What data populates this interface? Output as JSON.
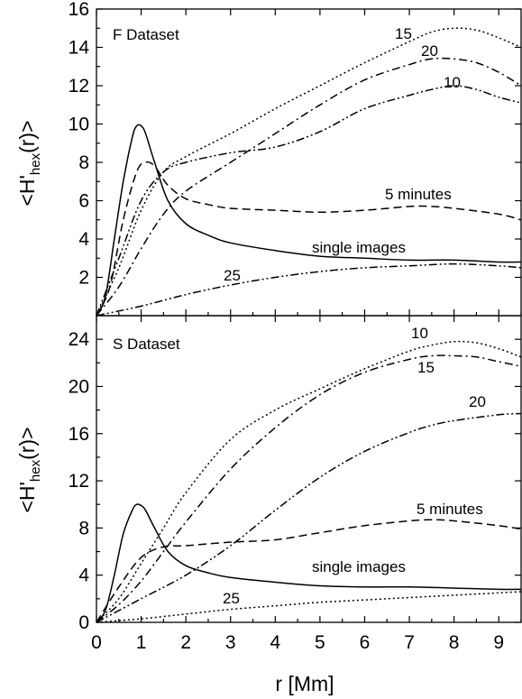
{
  "chart_data": [
    {
      "type": "line",
      "title": "F Dataset",
      "ylabel": "<H'hex(r)>",
      "xlim": [
        0,
        9.5
      ],
      "ylim": [
        0,
        16
      ],
      "yticks": [
        2,
        4,
        6,
        8,
        10,
        12,
        14,
        16
      ],
      "series": [
        {
          "name": "single images",
          "dash": "solid",
          "x": [
            0,
            0.2,
            0.4,
            0.6,
            0.8,
            0.9,
            1.0,
            1.1,
            1.3,
            1.6,
            2.0,
            2.5,
            3,
            4,
            5,
            6,
            7,
            8,
            9,
            9.5
          ],
          "y": [
            0,
            1,
            4,
            7,
            9.3,
            9.9,
            9.9,
            9.5,
            8,
            6,
            4.8,
            4.2,
            3.8,
            3.4,
            3.1,
            3.0,
            2.9,
            2.9,
            2.8,
            2.8
          ]
        },
        {
          "name": "5 minutes",
          "dash": "dashed",
          "x": [
            0,
            0.3,
            0.6,
            0.9,
            1.1,
            1.3,
            1.6,
            2.0,
            2.5,
            3,
            4,
            5,
            6,
            7,
            7.5,
            8,
            9,
            9.5
          ],
          "y": [
            0,
            1.5,
            5,
            7.5,
            8,
            7.8,
            6.8,
            6.1,
            5.8,
            5.6,
            5.5,
            5.4,
            5.5,
            5.7,
            5.7,
            5.6,
            5.3,
            5.0
          ]
        },
        {
          "name": "10",
          "dash": "dash-dot-dot",
          "x": [
            0,
            0.5,
            1.0,
            1.5,
            2.0,
            3,
            4,
            5,
            6,
            7,
            7.5,
            8,
            8.5,
            9,
            9.5
          ],
          "y": [
            0,
            3,
            6,
            7.5,
            8,
            8.5,
            8.8,
            9.6,
            10.8,
            11.5,
            11.8,
            12.0,
            11.8,
            11.4,
            11.1
          ]
        },
        {
          "name": "15",
          "dash": "dotted",
          "x": [
            0,
            0.5,
            1.0,
            1.5,
            2.0,
            3,
            4,
            5,
            6,
            7,
            7.5,
            8,
            8.5,
            9,
            9.5
          ],
          "y": [
            0,
            2.5,
            5.5,
            7.5,
            8.3,
            9.5,
            10.8,
            12,
            13.2,
            14.3,
            14.8,
            15.0,
            14.9,
            14.5,
            14.0
          ]
        },
        {
          "name": "20",
          "dash": "dash-dot",
          "x": [
            0,
            0.5,
            1.0,
            1.5,
            2.0,
            3,
            4,
            5,
            6,
            7,
            7.5,
            8,
            8.5,
            9,
            9.5
          ],
          "y": [
            0,
            1.5,
            3.5,
            5.3,
            6.5,
            8.0,
            9.5,
            11,
            12.3,
            13.1,
            13.4,
            13.4,
            13.2,
            12.7,
            12.0
          ]
        },
        {
          "name": "25",
          "dash": "dash-dot-dot",
          "x": [
            0,
            1,
            2,
            3,
            4,
            5,
            6,
            7,
            8,
            9,
            9.5
          ],
          "y": [
            0,
            0.5,
            1.1,
            1.6,
            2.0,
            2.3,
            2.5,
            2.6,
            2.7,
            2.6,
            2.5
          ]
        }
      ]
    },
    {
      "type": "line",
      "title": "S Dataset",
      "xlabel": "r [Mm]",
      "ylabel": "<H'hex(r)>",
      "xlim": [
        0,
        9.5
      ],
      "ylim": [
        0,
        26
      ],
      "yticks": [
        0,
        4,
        8,
        12,
        16,
        20,
        24
      ],
      "xticks": [
        0,
        1,
        2,
        3,
        4,
        5,
        6,
        7,
        8,
        9
      ],
      "series": [
        {
          "name": "single images",
          "dash": "solid",
          "x": [
            0,
            0.2,
            0.4,
            0.6,
            0.8,
            0.9,
            1.0,
            1.1,
            1.3,
            1.6,
            2.0,
            2.5,
            3,
            4,
            5,
            6,
            7,
            8,
            9,
            9.5
          ],
          "y": [
            0,
            1,
            4,
            7.5,
            9.5,
            10,
            9.9,
            9.5,
            8,
            6,
            4.8,
            4.2,
            3.8,
            3.4,
            3.1,
            3.0,
            3.0,
            2.9,
            2.8,
            2.8
          ]
        },
        {
          "name": "5 minutes",
          "dash": "dashed",
          "x": [
            0,
            0.5,
            1.0,
            1.5,
            2.0,
            3,
            4,
            5,
            6,
            7,
            7.5,
            8,
            9,
            9.5
          ],
          "y": [
            0,
            3,
            5.5,
            6.4,
            6.5,
            6.8,
            7.0,
            7.6,
            8.2,
            8.6,
            8.7,
            8.6,
            8.2,
            7.9
          ]
        },
        {
          "name": "10",
          "dash": "dotted",
          "x": [
            0,
            0.5,
            1.0,
            1.5,
            2.0,
            3,
            4,
            5,
            6,
            7,
            7.5,
            8,
            8.5,
            9,
            9.5
          ],
          "y": [
            0,
            2,
            5,
            8,
            11,
            15.5,
            18,
            19.8,
            21.5,
            23,
            23.5,
            23.8,
            23.7,
            23.2,
            22.5
          ]
        },
        {
          "name": "15",
          "dash": "dash-dot",
          "x": [
            0,
            0.5,
            1.0,
            1.5,
            2.0,
            3,
            4,
            5,
            6,
            7,
            7.5,
            8,
            8.5,
            9,
            9.5
          ],
          "y": [
            0,
            1.5,
            3.5,
            6,
            8.5,
            13,
            16.5,
            19.3,
            21.2,
            22.3,
            22.6,
            22.6,
            22.5,
            22.1,
            21.7
          ]
        },
        {
          "name": "20",
          "dash": "dash-dot-dot",
          "x": [
            0,
            1,
            2,
            3,
            4,
            5,
            6,
            7,
            7.5,
            8,
            9,
            9.5
          ],
          "y": [
            0,
            2,
            4,
            6.5,
            9.5,
            12.3,
            14.5,
            16.1,
            16.7,
            17.1,
            17.6,
            17.7
          ]
        },
        {
          "name": "25",
          "dash": "dotted",
          "x": [
            0,
            1,
            2,
            3,
            4,
            5,
            6,
            7,
            8,
            9,
            9.5
          ],
          "y": [
            0,
            0.3,
            0.7,
            1.1,
            1.4,
            1.7,
            1.9,
            2.1,
            2.3,
            2.5,
            2.6
          ]
        }
      ]
    }
  ]
}
